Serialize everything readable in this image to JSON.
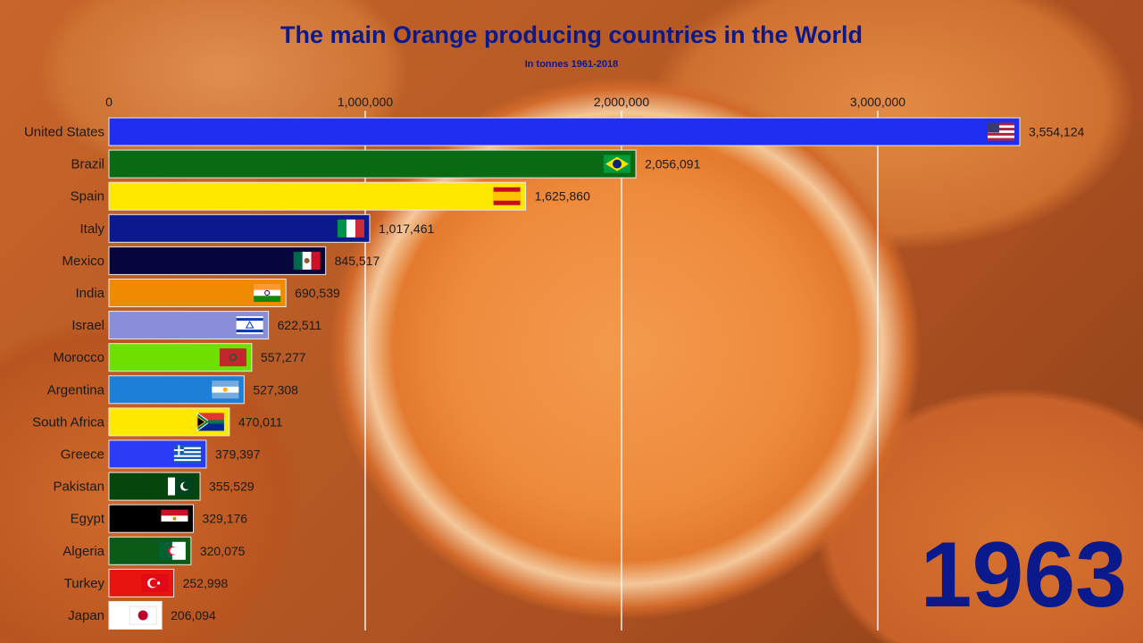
{
  "title": "The main Orange producing countries in the World",
  "subtitle": "In tonnes 1961-2018",
  "year": "1963",
  "chart_data": {
    "type": "bar",
    "orientation": "horizontal",
    "title": "The main Orange producing countries in the World",
    "subtitle": "In tonnes 1961-2018",
    "xlim": [
      0,
      3554124
    ],
    "x_ticks": [
      0,
      1000000,
      2000000,
      3000000
    ],
    "x_tick_labels": [
      "0",
      "1,000,000",
      "2,000,000",
      "3,000,000"
    ],
    "grid": "vertical",
    "categories": [
      "United States",
      "Brazil",
      "Spain",
      "Italy",
      "Mexico",
      "India",
      "Israel",
      "Morocco",
      "Argentina",
      "South Africa",
      "Greece",
      "Pakistan",
      "Egypt",
      "Algeria",
      "Turkey",
      "Japan"
    ],
    "values": [
      3554124,
      2056091,
      1625860,
      1017461,
      845517,
      690539,
      622511,
      557277,
      527308,
      470011,
      379397,
      355529,
      329176,
      320075,
      252998,
      206094
    ],
    "value_labels": [
      "3,554,124",
      "2,056,091",
      "1,625,860",
      "1,017,461",
      "845,517",
      "690,539",
      "622,511",
      "557,277",
      "527,308",
      "470,011",
      "379,397",
      "355,529",
      "329,176",
      "320,075",
      "252,998",
      "206,094"
    ],
    "colors": [
      "#1f2ef0",
      "#0a6a14",
      "#ffe800",
      "#0a1a8c",
      "#06063c",
      "#f08a00",
      "#8a8ed8",
      "#6ee000",
      "#1e7fd6",
      "#ffe800",
      "#2a3cf8",
      "#06460c",
      "#000000",
      "#0a5a18",
      "#e8150e",
      "#ffffff"
    ],
    "flags": [
      "us-flag-icon",
      "brazil-flag-icon",
      "spain-flag-icon",
      "italy-flag-icon",
      "mexico-flag-icon",
      "india-flag-icon",
      "israel-flag-icon",
      "morocco-flag-icon",
      "argentina-flag-icon",
      "south-africa-flag-icon",
      "greece-flag-icon",
      "pakistan-flag-icon",
      "egypt-flag-icon",
      "algeria-flag-icon",
      "turkey-flag-icon",
      "japan-flag-icon"
    ]
  }
}
